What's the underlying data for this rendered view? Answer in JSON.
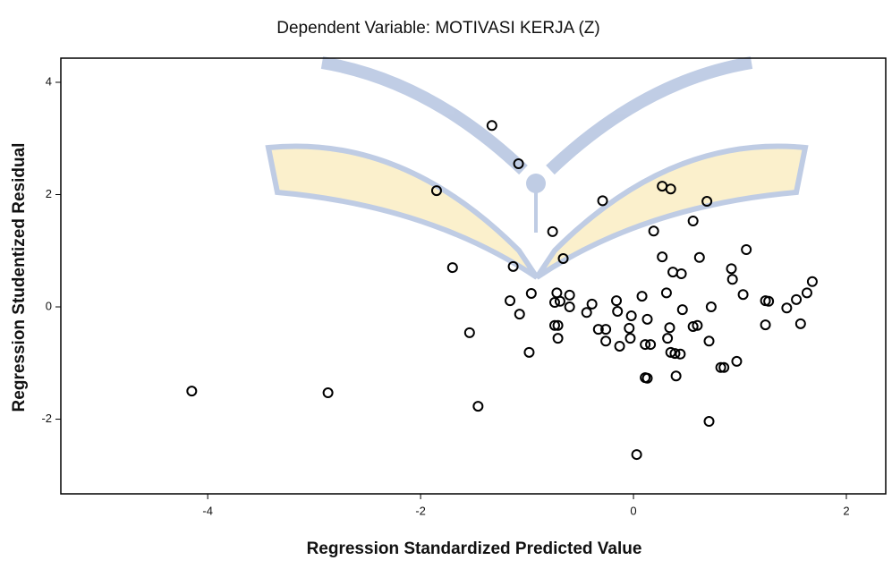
{
  "chart_data": {
    "type": "scatter",
    "title": "Dependent Variable: MOTIVASI KERJA (Z)",
    "x_label": "Regression Standardized Predicted Value",
    "y_label": "Regression Studentized Residual",
    "marker_color": "#000000",
    "xlim": [
      -5.38,
      2.37
    ],
    "ylim": [
      -3.33,
      4.43
    ],
    "xticks": [
      -4,
      -2,
      0,
      2
    ],
    "yticks": [
      -2,
      0,
      2,
      4
    ],
    "grid": false,
    "x": [
      -4.15,
      -2.87,
      -1.33,
      -1.08,
      -1.85,
      -1.7,
      -1.54,
      -1.46,
      -1.13,
      -1.16,
      -1.07,
      -0.96,
      -0.98,
      -0.76,
      -0.66,
      -0.72,
      -0.74,
      -0.69,
      -0.6,
      -0.6,
      -0.74,
      -0.71,
      -0.71,
      -0.44,
      -0.39,
      -0.33,
      -0.26,
      -0.26,
      -0.29,
      -0.16,
      -0.15,
      -0.13,
      -0.04,
      -0.02,
      -0.03,
      0.08,
      0.11,
      0.16,
      0.13,
      0.11,
      0.13,
      0.03,
      0.27,
      0.35,
      0.19,
      0.27,
      0.37,
      0.45,
      0.31,
      0.34,
      0.32,
      0.35,
      0.39,
      0.44,
      0.4,
      0.46,
      0.56,
      0.6,
      0.56,
      0.69,
      0.62,
      0.73,
      0.71,
      0.71,
      0.82,
      0.85,
      0.93,
      0.92,
      1.06,
      1.03,
      0.97,
      1.24,
      1.27,
      1.24,
      1.44,
      1.53,
      1.57,
      1.63,
      1.68
    ],
    "values": [
      -1.5,
      -1.53,
      3.23,
      2.55,
      2.07,
      0.7,
      -0.46,
      -1.77,
      0.72,
      0.11,
      -0.13,
      0.24,
      -0.81,
      1.34,
      0.86,
      0.25,
      0.08,
      0.1,
      0.21,
      0.0,
      -0.33,
      -0.33,
      -0.56,
      -0.1,
      0.05,
      -0.4,
      -0.4,
      -0.61,
      1.89,
      0.11,
      -0.08,
      -0.7,
      -0.38,
      -0.16,
      -0.56,
      0.19,
      -0.67,
      -0.67,
      -0.22,
      -1.26,
      -1.27,
      -2.63,
      2.15,
      2.1,
      1.35,
      0.89,
      0.62,
      0.59,
      0.25,
      -0.37,
      -0.56,
      -0.81,
      -0.83,
      -0.84,
      -1.23,
      -0.05,
      -0.35,
      -0.33,
      1.53,
      1.88,
      0.88,
      0.0,
      -0.61,
      -2.04,
      -1.08,
      -1.08,
      0.49,
      0.68,
      1.02,
      0.22,
      -0.97,
      0.11,
      0.1,
      -0.32,
      -0.02,
      0.13,
      -0.3,
      0.25,
      0.45
    ]
  }
}
